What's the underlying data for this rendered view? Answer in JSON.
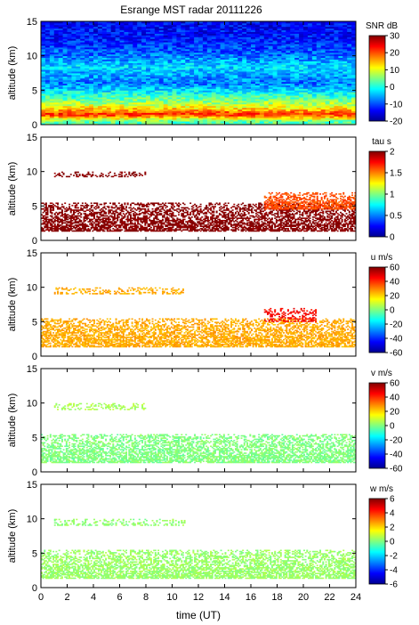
{
  "title": "Esrange MST radar 20111226",
  "xlabel": "time (UT)",
  "ylabel": "altitude (km)",
  "x_ticks": [
    "0",
    "2",
    "4",
    "6",
    "8",
    "10",
    "12",
    "14",
    "16",
    "18",
    "20",
    "22",
    "24"
  ],
  "y_ticks": [
    "0",
    "5",
    "10",
    "15"
  ],
  "colors": {
    "jet": [
      "#00008f",
      "#0000ff",
      "#0080ff",
      "#00ffff",
      "#80ff80",
      "#ffff00",
      "#ff8000",
      "#ff0000",
      "#800000"
    ]
  },
  "chart_data": [
    {
      "type": "heatmap",
      "quantity": "SNR",
      "cbar_label": "SNR dB",
      "cbar_ticks": [
        "30",
        "20",
        "10",
        "0",
        "-10",
        "-20"
      ],
      "clim": [
        -20,
        30
      ],
      "xlim": [
        0,
        24
      ],
      "ylim": [
        0,
        15
      ],
      "grid": false,
      "profile": [
        {
          "altitude": 0.5,
          "value": 3
        },
        {
          "altitude": 1.5,
          "value": 22
        },
        {
          "altitude": 2.5,
          "value": 12
        },
        {
          "altitude": 3.5,
          "value": 5
        },
        {
          "altitude": 4.5,
          "value": 0
        },
        {
          "altitude": 6,
          "value": -8
        },
        {
          "altitude": 8.5,
          "value": -3
        },
        {
          "altitude": 10,
          "value": -8
        },
        {
          "altitude": 12.5,
          "value": -13
        },
        {
          "altitude": 14.5,
          "value": -14
        }
      ]
    },
    {
      "type": "heatmap",
      "quantity": "tau",
      "cbar_label": "tau s",
      "cbar_ticks": [
        "2",
        "1.5",
        "1",
        "0.5",
        "0"
      ],
      "clim": [
        0,
        2
      ],
      "xlim": [
        0,
        24
      ],
      "ylim": [
        0,
        15
      ],
      "grid": false,
      "layers": [
        {
          "altitude_range": [
            1.3,
            5.5
          ],
          "time_range": [
            0,
            24
          ],
          "value": 2
        },
        {
          "altitude_range": [
            9.2,
            10
          ],
          "time_range": [
            1,
            8
          ],
          "value": 2
        },
        {
          "altitude_range": [
            4.5,
            7
          ],
          "time_range": [
            17,
            24
          ],
          "value": 1.6
        }
      ]
    },
    {
      "type": "heatmap",
      "quantity": "u",
      "cbar_label": "u m/s",
      "cbar_ticks": [
        "60",
        "40",
        "20",
        "0",
        "-20",
        "-40",
        "-60"
      ],
      "clim": [
        -60,
        60
      ],
      "xlim": [
        0,
        24
      ],
      "ylim": [
        0,
        15
      ],
      "grid": false,
      "layers": [
        {
          "altitude_range": [
            1.3,
            5.5
          ],
          "time_range": [
            0,
            24
          ],
          "value": 25
        },
        {
          "altitude_range": [
            9,
            10
          ],
          "time_range": [
            1,
            11
          ],
          "value": 25
        },
        {
          "altitude_range": [
            5,
            7
          ],
          "time_range": [
            17,
            21
          ],
          "value": 45
        }
      ]
    },
    {
      "type": "heatmap",
      "quantity": "v",
      "cbar_label": "v m/s",
      "cbar_ticks": [
        "60",
        "40",
        "20",
        "0",
        "-20",
        "-40",
        "-60"
      ],
      "clim": [
        -60,
        60
      ],
      "xlim": [
        0,
        24
      ],
      "ylim": [
        0,
        15
      ],
      "grid": false,
      "layers": [
        {
          "altitude_range": [
            1.3,
            5.5
          ],
          "time_range": [
            0,
            24
          ],
          "value": 0
        },
        {
          "altitude_range": [
            9,
            10
          ],
          "time_range": [
            1,
            8
          ],
          "value": 5
        }
      ]
    },
    {
      "type": "heatmap",
      "quantity": "w",
      "cbar_label": "w m/s",
      "cbar_ticks": [
        "6",
        "4",
        "2",
        "0",
        "-2",
        "-4",
        "-6"
      ],
      "clim": [
        -6,
        6
      ],
      "xlim": [
        0,
        24
      ],
      "ylim": [
        0,
        15
      ],
      "grid": false,
      "layers": [
        {
          "altitude_range": [
            1.3,
            5.5
          ],
          "time_range": [
            0,
            24
          ],
          "value": 0.3
        },
        {
          "altitude_range": [
            9,
            10
          ],
          "time_range": [
            1,
            11
          ],
          "value": 0.2
        }
      ]
    }
  ]
}
